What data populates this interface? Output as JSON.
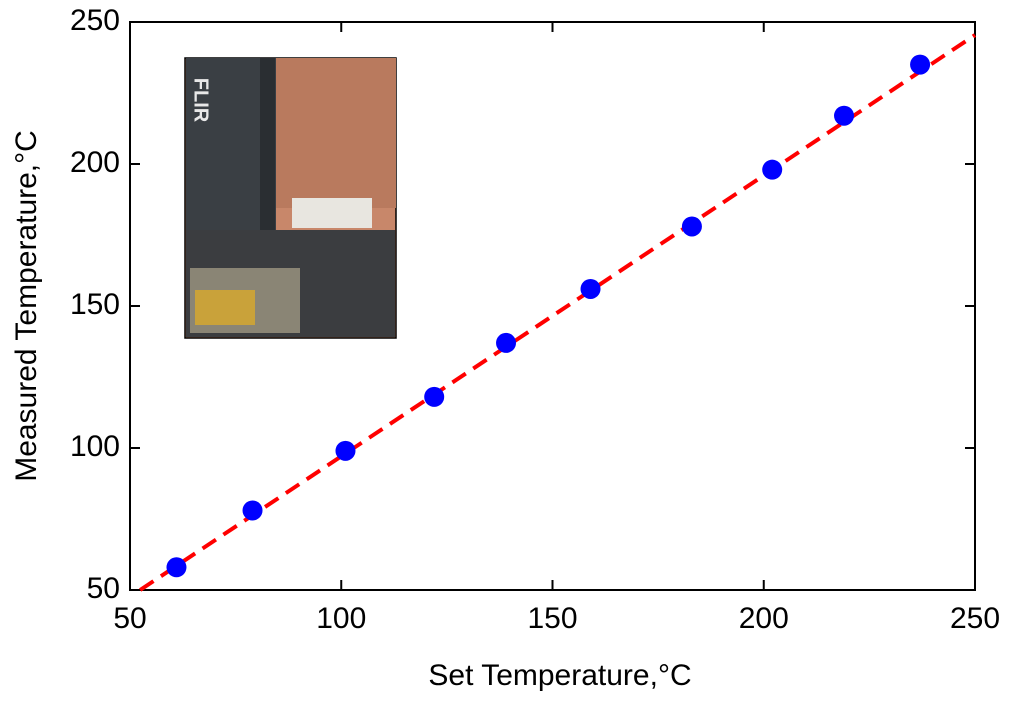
{
  "chart_data": {
    "type": "scatter",
    "xlabel": "Set Temperature,°C",
    "ylabel": "Measured Temperature,°C",
    "xlim": [
      50,
      250
    ],
    "ylim": [
      50,
      250
    ],
    "xticks": [
      50,
      100,
      150,
      200,
      250
    ],
    "yticks": [
      50,
      100,
      150,
      200,
      250
    ],
    "inset_text": "FLIR",
    "series": [
      {
        "x": [
          61,
          79,
          101,
          122,
          139,
          159,
          183,
          202,
          219,
          237
        ],
        "values": [
          58,
          78,
          99,
          118,
          137,
          156,
          178,
          198,
          217,
          235
        ],
        "color": "#0000ff"
      }
    ],
    "fit": {
      "x": [
        52.4,
        250
      ],
      "values": [
        50,
        245.4
      ],
      "color": "#ff0000"
    }
  }
}
